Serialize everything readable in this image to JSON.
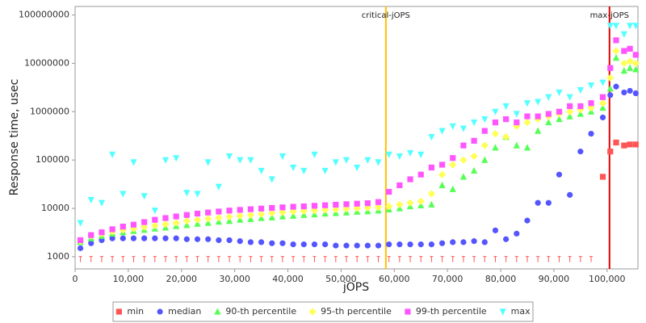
{
  "chart_data": {
    "type": "scatter",
    "x_label": "jOPS",
    "y_label": "Response time, usec",
    "y_scale": "log",
    "grid": false,
    "legend": "bottom",
    "xlim": [
      0,
      105800
    ],
    "ylim": [
      560,
      150000000
    ],
    "xticks": [
      0,
      {
        "value": 10000,
        "label": "10,000"
      },
      {
        "value": 20000,
        "label": "20,000"
      },
      {
        "value": 30000,
        "label": "30,000"
      },
      {
        "value": 40000,
        "label": "40,000"
      },
      {
        "value": 50000,
        "label": "50,000"
      },
      {
        "value": 60000,
        "label": "60,000"
      },
      {
        "value": 70000,
        "label": "70,000"
      },
      {
        "value": 80000,
        "label": "80,000"
      },
      {
        "value": 90000,
        "label": "90,000"
      },
      {
        "value": 100000,
        "label": "100,000"
      }
    ],
    "yticks": [
      1000,
      10000,
      100000,
      1000000,
      10000000,
      100000000
    ],
    "markers": [
      {
        "label": "critical-jOPS",
        "value": 58420,
        "color": "#ffc000"
      },
      {
        "label": "max-jOPS",
        "value": 100455,
        "color": "#e00000"
      }
    ],
    "x": [
      1000,
      3000,
      5000,
      7000,
      9000,
      11000,
      13000,
      15000,
      17000,
      19000,
      21000,
      23000,
      25000,
      27000,
      29000,
      31000,
      33000,
      35000,
      37000,
      39000,
      41000,
      43000,
      45000,
      47000,
      49000,
      51000,
      53000,
      55000,
      57000,
      59000,
      61000,
      63000,
      65000,
      67000,
      69000,
      71000,
      73000,
      75000,
      77000,
      79000,
      81000,
      83000,
      85000,
      87000,
      89000,
      91000,
      93000,
      95000,
      97000,
      99200,
      100600,
      101700,
      103200,
      104300,
      105400
    ],
    "series": [
      {
        "name": "min",
        "color": "#ff5555",
        "marker": "square",
        "values": [
          900,
          900,
          900,
          900,
          900,
          900,
          900,
          900,
          900,
          900,
          900,
          900,
          900,
          900,
          900,
          900,
          900,
          900,
          900,
          900,
          900,
          900,
          900,
          900,
          900,
          900,
          900,
          900,
          900,
          900,
          900,
          900,
          900,
          900,
          900,
          900,
          900,
          900,
          900,
          900,
          900,
          900,
          900,
          900,
          900,
          900,
          900,
          900,
          900,
          45000,
          150000,
          230000,
          200000,
          210000,
          210000
        ]
      },
      {
        "name": "median",
        "color": "#5555ff",
        "marker": "circle",
        "values": [
          1500,
          1900,
          2200,
          2400,
          2400,
          2400,
          2400,
          2400,
          2400,
          2400,
          2300,
          2300,
          2300,
          2200,
          2200,
          2100,
          2000,
          2000,
          1900,
          1900,
          1800,
          1800,
          1800,
          1800,
          1700,
          1700,
          1700,
          1700,
          1700,
          1800,
          1800,
          1800,
          1800,
          1800,
          1900,
          2000,
          2000,
          2100,
          2000,
          3500,
          2300,
          3000,
          5600,
          13000,
          13000,
          50000,
          19000,
          150000,
          350000,
          760000,
          2200000,
          3300000,
          2500000,
          2700000,
          2400000
        ]
      },
      {
        "name": "90-th percentile",
        "color": "#55ff55",
        "marker": "triangle",
        "values": [
          2000,
          2400,
          2700,
          3000,
          3200,
          3400,
          3600,
          3800,
          4000,
          4300,
          4500,
          4800,
          5000,
          5300,
          5500,
          5800,
          6000,
          6300,
          6500,
          6800,
          7000,
          7300,
          7500,
          7800,
          8000,
          8200,
          8500,
          8700,
          9000,
          9500,
          10000,
          11000,
          11500,
          12000,
          30000,
          25000,
          45000,
          60000,
          100000,
          180000,
          300000,
          200000,
          180000,
          400000,
          600000,
          700000,
          800000,
          900000,
          1000000,
          1200000,
          3000000,
          13000000,
          7000000,
          8000000,
          7500000
        ]
      },
      {
        "name": "95-th percentile",
        "color": "#ffff55",
        "marker": "diamond",
        "values": [
          2100,
          2700,
          3000,
          3300,
          3600,
          3800,
          4100,
          4400,
          4700,
          5000,
          5500,
          5800,
          6100,
          6400,
          6700,
          7000,
          7300,
          7600,
          8000,
          8300,
          8600,
          8800,
          9000,
          9300,
          9500,
          9800,
          10000,
          10300,
          10500,
          11000,
          12000,
          13000,
          14000,
          20000,
          50000,
          80000,
          100000,
          120000,
          200000,
          350000,
          300000,
          500000,
          600000,
          700000,
          800000,
          900000,
          1000000,
          1100000,
          1200000,
          1500000,
          5000000,
          18000000,
          10000000,
          11000000,
          10000000
        ]
      },
      {
        "name": "99-th percentile",
        "color": "#ff55ff",
        "marker": "square",
        "values": [
          2200,
          2800,
          3200,
          3700,
          4200,
          4600,
          5200,
          5800,
          6300,
          6800,
          7300,
          7800,
          8200,
          8600,
          9000,
          9300,
          9600,
          9900,
          10200,
          10500,
          10800,
          11000,
          11300,
          11600,
          11900,
          12200,
          12500,
          12800,
          13500,
          22000,
          30000,
          40000,
          50000,
          70000,
          80000,
          110000,
          200000,
          250000,
          400000,
          600000,
          700000,
          600000,
          800000,
          800000,
          900000,
          1000000,
          1300000,
          1300000,
          1500000,
          2000000,
          8000000,
          30000000,
          18000000,
          20000000,
          15000000
        ]
      },
      {
        "name": "max",
        "color": "#55ffff",
        "marker": "down-triangle",
        "values": [
          5000,
          15000,
          13000,
          130000,
          20000,
          90000,
          18000,
          9000,
          100000,
          110000,
          21000,
          20000,
          90000,
          28000,
          120000,
          100000,
          100000,
          60000,
          40000,
          120000,
          70000,
          60000,
          130000,
          60000,
          90000,
          100000,
          70000,
          100000,
          90000,
          130000,
          120000,
          140000,
          130000,
          300000,
          400000,
          500000,
          450000,
          600000,
          700000,
          1000000,
          1300000,
          900000,
          1500000,
          1600000,
          2000000,
          2500000,
          2000000,
          2800000,
          3500000,
          4000000,
          60000000,
          60000000,
          40000000,
          60000000,
          60000000
        ]
      }
    ]
  }
}
